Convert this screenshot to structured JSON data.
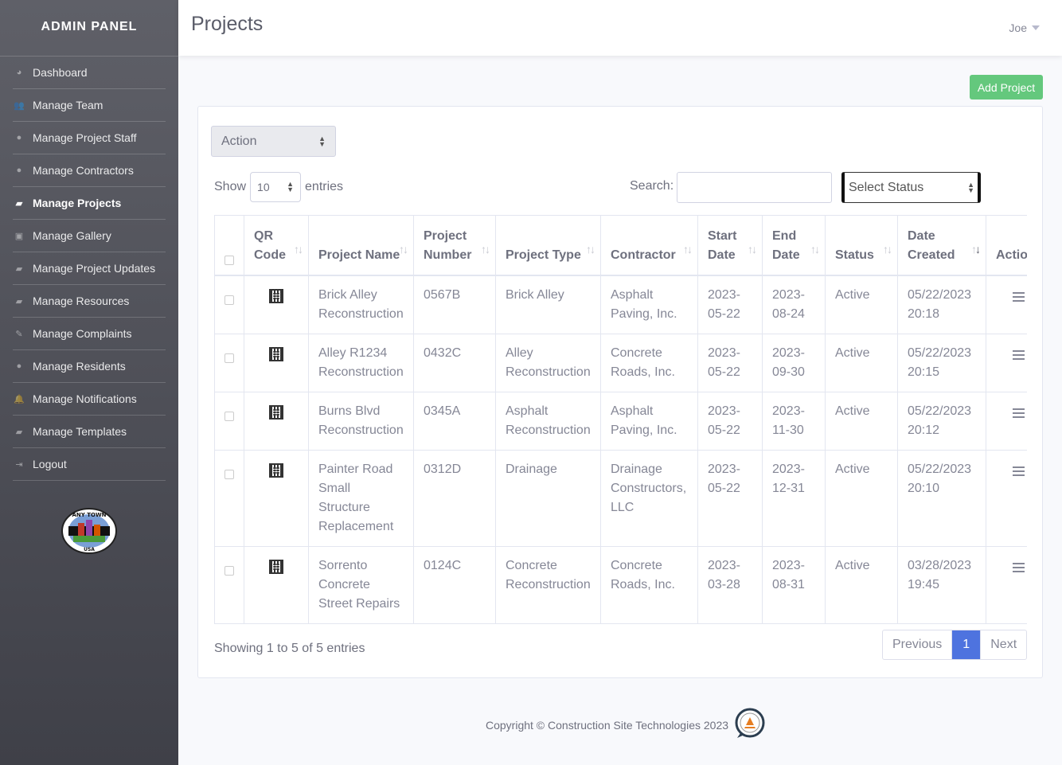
{
  "sidebar": {
    "brand": "ADMIN PANEL",
    "items": [
      {
        "label": "Dashboard",
        "icon": "dashboard-icon",
        "active": false
      },
      {
        "label": "Manage Team",
        "icon": "users-icon",
        "active": false
      },
      {
        "label": "Manage Project Staff",
        "icon": "user-icon",
        "active": false
      },
      {
        "label": "Manage Contractors",
        "icon": "user-icon",
        "active": false
      },
      {
        "label": "Manage Projects",
        "icon": "note-icon",
        "active": true
      },
      {
        "label": "Manage Gallery",
        "icon": "image-icon",
        "active": false
      },
      {
        "label": "Manage Project Updates",
        "icon": "note-icon",
        "active": false
      },
      {
        "label": "Manage Resources",
        "icon": "note-icon",
        "active": false
      },
      {
        "label": "Manage Complaints",
        "icon": "edit-icon",
        "active": false
      },
      {
        "label": "Manage Residents",
        "icon": "user-icon",
        "active": false
      },
      {
        "label": "Manage Notifications",
        "icon": "bell-icon",
        "active": false
      },
      {
        "label": "Manage Templates",
        "icon": "note-icon",
        "active": false
      },
      {
        "label": "Logout",
        "icon": "logout-icon",
        "active": false
      }
    ],
    "logo_text_top": "ANY TOWN",
    "logo_text_bottom": "USA"
  },
  "topbar": {
    "title": "Projects",
    "user": "Joe"
  },
  "add_button": "Add Project",
  "controls": {
    "action": "Action",
    "show_label": "Show",
    "entries_value": "10",
    "entries_label": "entries",
    "search_label": "Search:",
    "search_value": "",
    "status_select": "Select Status"
  },
  "table": {
    "headers": [
      "QR Code",
      "Project Name",
      "Project Number",
      "Project Type",
      "Contractor",
      "Start Date",
      "End Date",
      "Status",
      "Date Created",
      "Actio"
    ],
    "rows": [
      {
        "name": "Brick Alley Reconstruction",
        "number": "0567B",
        "type": "Brick Alley",
        "contractor": "Asphalt Paving, Inc.",
        "start": "2023-05-22",
        "end": "2023-08-24",
        "status": "Active",
        "created": "05/22/2023 20:18"
      },
      {
        "name": "Alley R1234 Reconstruction",
        "number": "0432C",
        "type": "Alley Reconstruction",
        "contractor": "Concrete Roads, Inc.",
        "start": "2023-05-22",
        "end": "2023-09-30",
        "status": "Active",
        "created": "05/22/2023 20:15"
      },
      {
        "name": "Burns Blvd Reconstruction",
        "number": "0345A",
        "type": "Asphalt Reconstruction",
        "contractor": "Asphalt Paving, Inc.",
        "start": "2023-05-22",
        "end": "2023-11-30",
        "status": "Active",
        "created": "05/22/2023 20:12"
      },
      {
        "name": "Painter Road Small Structure Replacement",
        "number": "0312D",
        "type": "Drainage",
        "contractor": "Drainage Constructors, LLC",
        "start": "2023-05-22",
        "end": "2023-12-31",
        "status": "Active",
        "created": "05/22/2023 20:10"
      },
      {
        "name": "Sorrento Concrete Street Repairs",
        "number": "0124C",
        "type": "Concrete Reconstruction",
        "contractor": "Concrete Roads, Inc.",
        "start": "2023-03-28",
        "end": "2023-08-31",
        "status": "Active",
        "created": "03/28/2023 19:45"
      }
    ]
  },
  "info": "Showing 1 to 5 of 5 entries",
  "pager": {
    "prev": "Previous",
    "page": "1",
    "next": "Next"
  },
  "footer": "Copyright © Construction Site Technologies 2023",
  "colors": {
    "accent": "#4e73df",
    "success": "#64c87d"
  }
}
